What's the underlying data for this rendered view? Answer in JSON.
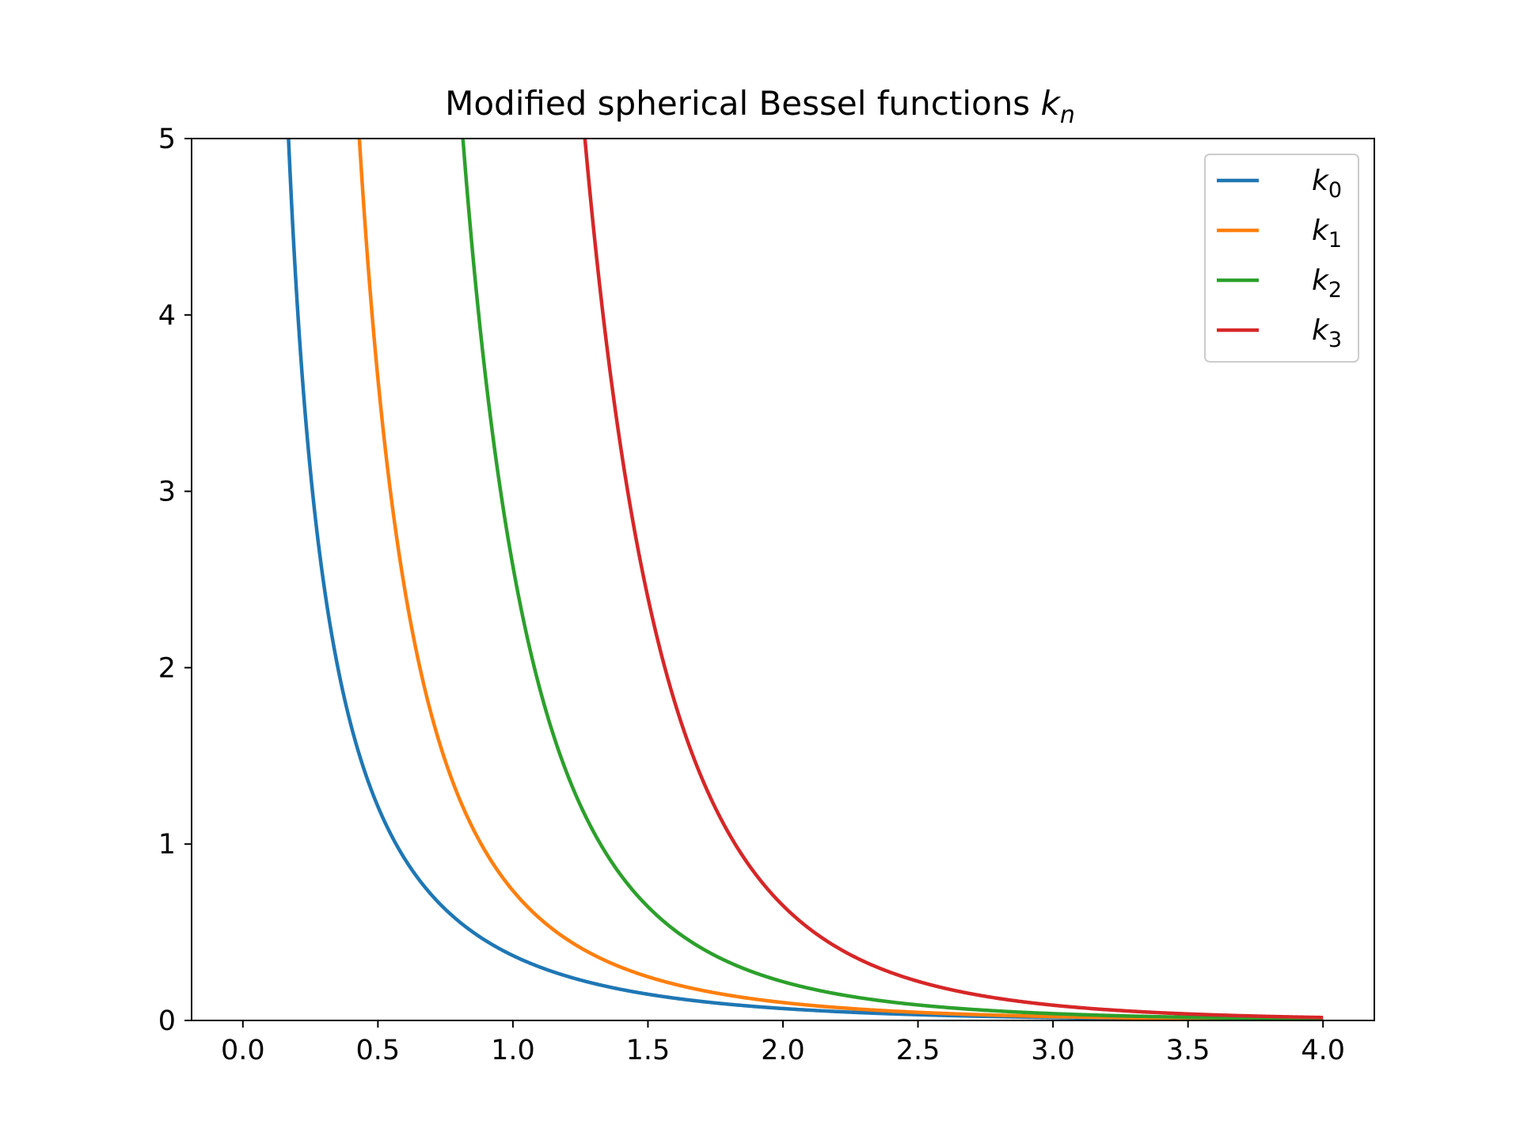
{
  "chart_data": {
    "type": "line",
    "title_prefix": "Modified spherical Bessel functions ",
    "title_var": "k",
    "title_sub": "n",
    "xlim": [
      -0.19,
      4.19
    ],
    "ylim": [
      0,
      5
    ],
    "xticks": [
      0.0,
      0.5,
      1.0,
      1.5,
      2.0,
      2.5,
      3.0,
      3.5,
      4.0
    ],
    "xtick_labels": [
      "0.0",
      "0.5",
      "1.0",
      "1.5",
      "2.0",
      "2.5",
      "3.0",
      "3.5",
      "4.0"
    ],
    "yticks": [
      0,
      1,
      2,
      3,
      4,
      5
    ],
    "ytick_labels": [
      "0",
      "1",
      "2",
      "3",
      "4",
      "5"
    ],
    "x_domain": [
      0.01,
      4.0
    ],
    "grid": false,
    "legend_position": "top-right",
    "series": [
      {
        "name": "k",
        "sub": "0",
        "order": 0,
        "color": "#1f77b4"
      },
      {
        "name": "k",
        "sub": "1",
        "order": 1,
        "color": "#ff7f0e"
      },
      {
        "name": "k",
        "sub": "2",
        "order": 2,
        "color": "#2ca02c"
      },
      {
        "name": "k",
        "sub": "3",
        "order": 3,
        "color": "#d62728"
      }
    ]
  }
}
